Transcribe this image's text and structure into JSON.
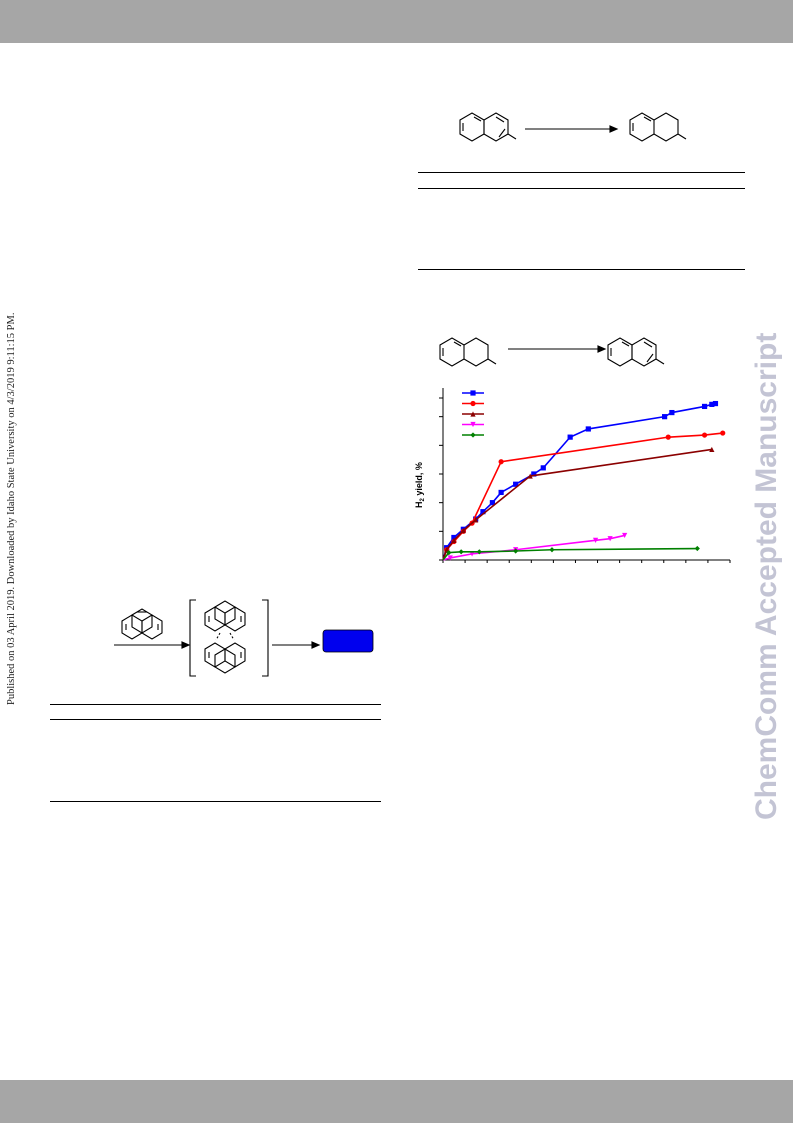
{
  "side_note": "Published on 03 April 2019. Downloaded by Idaho State University on 4/3/2019 9:11:15 PM.",
  "watermark": "ChemComm Accepted Manuscript",
  "chart_data": {
    "type": "line",
    "ylabel": "H2 yield, %",
    "series": [
      {
        "color": "#0000ff",
        "marker": "square",
        "points": [
          [
            0,
            0
          ],
          [
            5,
            30
          ],
          [
            15,
            55
          ],
          [
            28,
            75
          ],
          [
            45,
            100
          ],
          [
            55,
            118
          ],
          [
            68,
            140
          ],
          [
            80,
            165
          ],
          [
            100,
            185
          ],
          [
            125,
            210
          ],
          [
            138,
            225
          ],
          [
            175,
            300
          ],
          [
            200,
            320
          ],
          [
            305,
            350
          ],
          [
            315,
            360
          ],
          [
            360,
            375
          ],
          [
            370,
            380
          ],
          [
            375,
            382
          ]
        ]
      },
      {
        "color": "#ff0000",
        "marker": "circle",
        "points": [
          [
            0,
            0
          ],
          [
            5,
            25
          ],
          [
            15,
            45
          ],
          [
            28,
            70
          ],
          [
            40,
            90
          ],
          [
            80,
            240
          ],
          [
            310,
            300
          ],
          [
            360,
            305
          ],
          [
            385,
            310
          ]
        ]
      },
      {
        "color": "#8b0000",
        "marker": "triangle-up",
        "points": [
          [
            0,
            0
          ],
          [
            5,
            25
          ],
          [
            15,
            48
          ],
          [
            28,
            72
          ],
          [
            45,
            98
          ],
          [
            120,
            205
          ],
          [
            370,
            270
          ]
        ]
      },
      {
        "color": "#ff00ff",
        "marker": "triangle-down",
        "points": [
          [
            0,
            0
          ],
          [
            10,
            5
          ],
          [
            40,
            15
          ],
          [
            100,
            25
          ],
          [
            210,
            48
          ],
          [
            230,
            52
          ],
          [
            250,
            60
          ]
        ]
      },
      {
        "color": "#008000",
        "marker": "diamond",
        "points": [
          [
            0,
            0
          ],
          [
            8,
            18
          ],
          [
            25,
            20
          ],
          [
            50,
            20
          ],
          [
            100,
            22
          ],
          [
            150,
            25
          ],
          [
            350,
            28
          ]
        ]
      }
    ]
  }
}
